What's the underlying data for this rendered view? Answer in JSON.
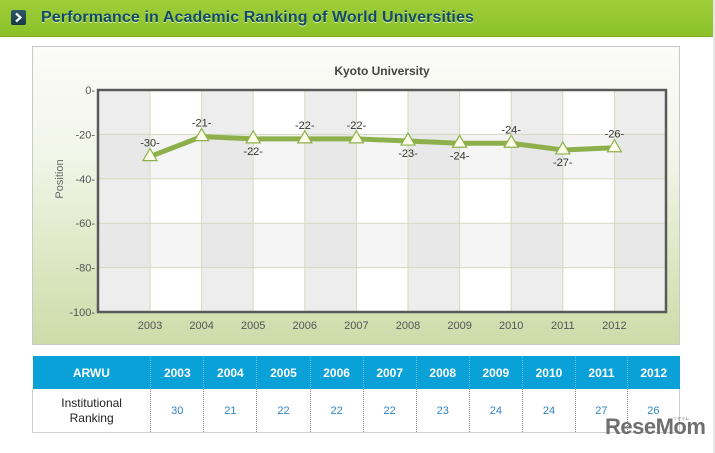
{
  "header": {
    "title": "Performance in Academic Ranking of World Universities",
    "icon": "chevron-right-icon"
  },
  "chart_data": {
    "type": "line",
    "title": "Kyoto University",
    "xlabel": "",
    "ylabel": "Position",
    "categories": [
      "2003",
      "2004",
      "2005",
      "2006",
      "2007",
      "2008",
      "2009",
      "2010",
      "2011",
      "2012"
    ],
    "series": [
      {
        "name": "Kyoto University",
        "values": [
          -30,
          -21,
          -22,
          -22,
          -22,
          -23,
          -24,
          -24,
          -27,
          -26
        ]
      }
    ],
    "data_labels": [
      "-30-",
      "-21-",
      "-22-",
      "-22-",
      "-22-",
      "-23-",
      "-24-",
      "-24-",
      "-27-",
      "-26-"
    ],
    "yticks": [
      0,
      -20,
      -40,
      -60,
      -80,
      -100
    ],
    "ytick_labels": [
      "0-",
      "-20-",
      "-40-",
      "-60-",
      "-80-",
      "-100-"
    ],
    "ylim": [
      -100,
      0
    ],
    "grid": true,
    "marker": "triangle",
    "line_color": "#8eb04c",
    "legend": "none"
  },
  "table": {
    "header_label": "ARWU",
    "years": [
      "2003",
      "2004",
      "2005",
      "2006",
      "2007",
      "2008",
      "2009",
      "2010",
      "2011",
      "2012"
    ],
    "row_label_line1": "Institutional",
    "row_label_line2": "Ranking",
    "values": [
      "30",
      "21",
      "22",
      "22",
      "22",
      "23",
      "24",
      "24",
      "27",
      "26"
    ]
  },
  "colors": {
    "header_green": "#96c932",
    "title_blue": "#124b6a",
    "table_header": "#0aa0d8",
    "table_values": "#2f86c8"
  },
  "watermark": {
    "text": "ReseMom",
    "small": "リセマム"
  }
}
